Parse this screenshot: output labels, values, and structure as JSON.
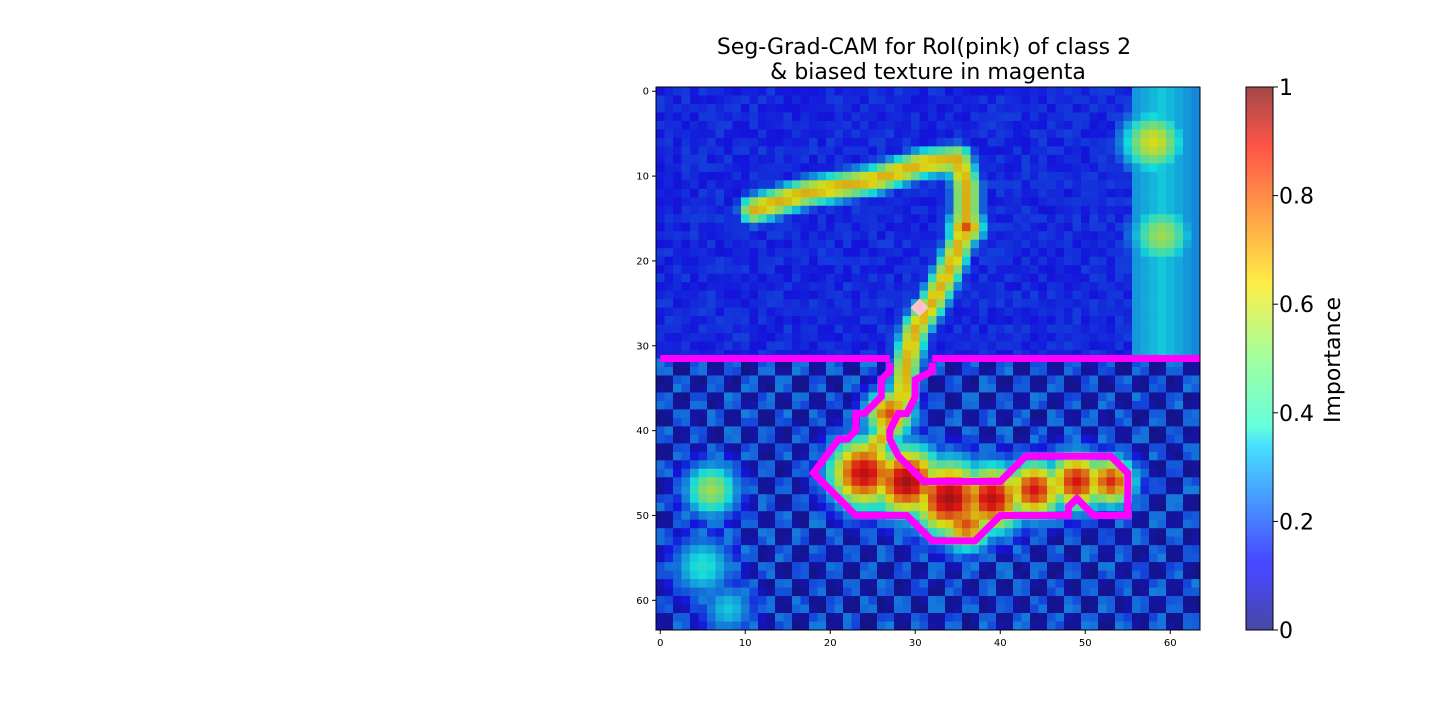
{
  "chart_data": {
    "type": "heatmap",
    "title_line1": "Seg-Grad-CAM for RoI(pink) of class 2",
    "title_line2": "& biased texture in magenta",
    "x_ticks": [
      "0",
      "10",
      "20",
      "30",
      "40",
      "50",
      "60"
    ],
    "y_ticks": [
      "0",
      "10",
      "20",
      "30",
      "40",
      "50",
      "60"
    ],
    "xlim": [
      0,
      63
    ],
    "ylim": [
      63,
      0
    ],
    "colorbar": {
      "label": "Importance",
      "ticks": [
        "0",
        "0.2",
        "0.4",
        "0.6",
        "0.8",
        "1"
      ],
      "range": [
        0,
        1
      ],
      "colormap": "jet"
    },
    "texture_boundary_row": 32,
    "roi_marker": {
      "x": 30.5,
      "y": 25.5,
      "color": "#ffc0cb"
    },
    "roi_contour_color": "#ff00ff",
    "roi_contour": [
      [
        27,
        32
      ],
      [
        27,
        33
      ],
      [
        26,
        34
      ],
      [
        26,
        36
      ],
      [
        25,
        37
      ],
      [
        24,
        38
      ],
      [
        23,
        38
      ],
      [
        23,
        40
      ],
      [
        22,
        41
      ],
      [
        21,
        41
      ],
      [
        18,
        45
      ],
      [
        20,
        47
      ],
      [
        23,
        50
      ],
      [
        29,
        50
      ],
      [
        31,
        52
      ],
      [
        32,
        53
      ],
      [
        37,
        53
      ],
      [
        40,
        50
      ],
      [
        48,
        50
      ],
      [
        48,
        49
      ],
      [
        49,
        48
      ],
      [
        50,
        49
      ],
      [
        51,
        50
      ],
      [
        55,
        50
      ],
      [
        55,
        45
      ],
      [
        54,
        44
      ],
      [
        53,
        43
      ],
      [
        43,
        43
      ],
      [
        41,
        45
      ],
      [
        40,
        46
      ],
      [
        31,
        46
      ],
      [
        30,
        45
      ],
      [
        28,
        43
      ],
      [
        27,
        41
      ],
      [
        27,
        40
      ],
      [
        28,
        38
      ],
      [
        29,
        38
      ],
      [
        30,
        36
      ],
      [
        30,
        34
      ],
      [
        32,
        33
      ],
      [
        32,
        32
      ]
    ],
    "stroke_path": [
      [
        11,
        14
      ],
      [
        17,
        12
      ],
      [
        25,
        10.5
      ],
      [
        31,
        8.5
      ],
      [
        35,
        8
      ],
      [
        36,
        11
      ],
      [
        36,
        16
      ],
      [
        34,
        21
      ],
      [
        32,
        25
      ],
      [
        30,
        28
      ],
      [
        29,
        32
      ],
      [
        28.5,
        36
      ],
      [
        27,
        40
      ],
      [
        25,
        42
      ]
    ],
    "hotspots": [
      {
        "x": 24,
        "y": 45,
        "v": 0.92,
        "r": 3.2
      },
      {
        "x": 29,
        "y": 46,
        "v": 0.95,
        "r": 3.2
      },
      {
        "x": 34,
        "y": 48,
        "v": 0.95,
        "r": 3.4
      },
      {
        "x": 39,
        "y": 48,
        "v": 0.92,
        "r": 3.0
      },
      {
        "x": 44,
        "y": 47,
        "v": 0.88,
        "r": 2.6
      },
      {
        "x": 49,
        "y": 46,
        "v": 0.88,
        "r": 2.6
      },
      {
        "x": 53,
        "y": 46,
        "v": 0.85,
        "r": 2.2
      },
      {
        "x": 36,
        "y": 51,
        "v": 0.8,
        "r": 2.4
      },
      {
        "x": 27,
        "y": 38,
        "v": 0.8,
        "r": 2.2
      },
      {
        "x": 36,
        "y": 16,
        "v": 0.8,
        "r": 1.6
      },
      {
        "x": 58,
        "y": 6,
        "v": 0.62,
        "r": 3.0
      },
      {
        "x": 59,
        "y": 17,
        "v": 0.55,
        "r": 3.0
      },
      {
        "x": 6,
        "y": 47,
        "v": 0.55,
        "r": 2.6
      },
      {
        "x": 5,
        "y": 56,
        "v": 0.4,
        "r": 3.0
      },
      {
        "x": 8,
        "y": 61,
        "v": 0.35,
        "r": 2.6
      }
    ]
  }
}
